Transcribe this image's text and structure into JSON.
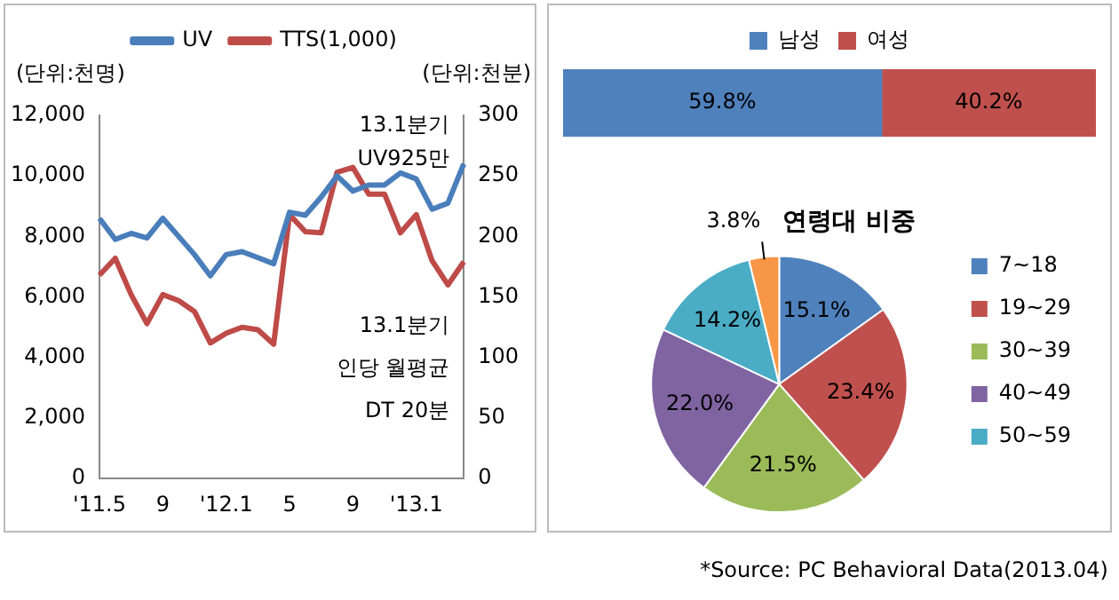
{
  "chart_data": [
    {
      "type": "line",
      "ylabel": "(단위:천명)",
      "y2label": "(단위:천분)",
      "categories": [
        "'11.5",
        null,
        null,
        null,
        "9",
        null,
        null,
        null,
        "'12.1",
        null,
        null,
        null,
        "5",
        null,
        null,
        null,
        "9",
        null,
        null,
        null,
        "'13.1",
        null,
        null,
        null
      ],
      "series": [
        {
          "name": "UV",
          "color": "#4a7ebb",
          "values": [
            8600,
            7900,
            8100,
            7950,
            8600,
            8000,
            7400,
            6700,
            7400,
            7500,
            7300,
            7100,
            8800,
            8700,
            9300,
            10000,
            9500,
            9700,
            9700,
            10100,
            9900,
            8900,
            9100,
            10400
          ]
        },
        {
          "name": "TTS(1,000)",
          "color": "#be4b48",
          "axis": "y2",
          "values": [
            168,
            182,
            152,
            128,
            152,
            147,
            138,
            112,
            120,
            125,
            123,
            111,
            218,
            204,
            203,
            253,
            257,
            235,
            235,
            203,
            218,
            180,
            160,
            179
          ]
        }
      ],
      "ylim": [
        0,
        12000
      ],
      "yticks": [
        0,
        {
          "value": 2000,
          "label": "2,000"
        },
        {
          "value": 4000,
          "label": "4,000"
        },
        {
          "value": 6000,
          "label": "6,000"
        },
        {
          "value": 8000,
          "label": "8,000"
        },
        {
          "value": 10000,
          "label": "10,000"
        },
        {
          "value": 12000,
          "label": "12,000"
        }
      ],
      "y2lim": [
        0,
        300
      ],
      "y2ticks": [
        0,
        50,
        100,
        150,
        200,
        250,
        300
      ],
      "annotations": [
        "13.1분기\nUV925만",
        "13.1분기\n인당 월평균\nDT 20분"
      ],
      "legend": "top",
      "grid": false,
      "marker": "none"
    },
    {
      "type": "bar",
      "orientation": "horizontal",
      "stacked": true,
      "categories": [
        null
      ],
      "series": [
        {
          "name": "남성",
          "color": "#4f81bd",
          "values": [
            59.8
          ],
          "value_labels": [
            "59.8%"
          ]
        },
        {
          "name": "여성",
          "color": "#c0504d",
          "values": [
            40.2
          ],
          "value_labels": [
            "40.2%"
          ]
        }
      ],
      "xlim": [
        0,
        100
      ],
      "tick_labels": false,
      "legend": "top",
      "grid": false
    },
    {
      "type": "pie",
      "title": "연령대 비중",
      "categories": [
        "7~18",
        "19~29",
        "30~39",
        "40~49",
        "50~59",
        null
      ],
      "values": [
        15.1,
        23.4,
        21.5,
        22.0,
        14.2,
        3.8
      ],
      "colors": [
        "#4f81bd",
        "#c0504d",
        "#9bbb59",
        "#8064a2",
        "#4bacc6",
        "#f79646"
      ],
      "value_labels": [
        "15.1%",
        "23.4%",
        "21.5%",
        "22.0%",
        "14.2%",
        "3.8%"
      ],
      "legend": "right",
      "annotations": [
        "*Source: PC Behavioral Data(2013.04)"
      ]
    }
  ]
}
